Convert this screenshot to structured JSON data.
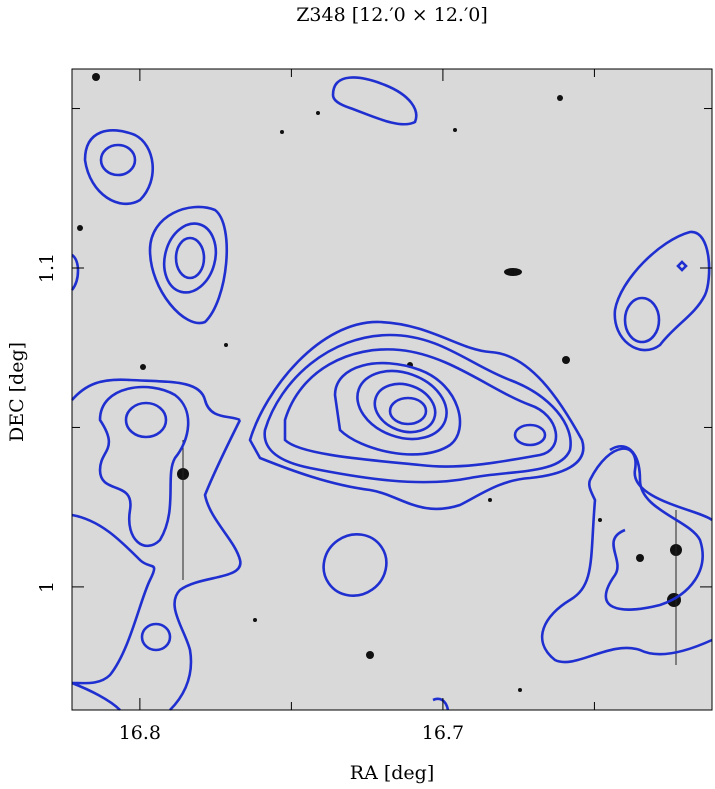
{
  "chart_data": {
    "type": "image",
    "title": "Z348  [12.′0 × 12.′0]",
    "xlabel": "RA [deg]",
    "ylabel": "DEC [deg]",
    "xlim": [
      16.8224,
      16.6112
    ],
    "xticks": [
      16.8,
      16.7
    ],
    "xminorticks": [
      16.75,
      16.65
    ],
    "ylim": [
      0.9614,
      1.1624
    ],
    "yticks": [
      1,
      1.1
    ],
    "yminorticks": [
      1.05,
      1.15
    ],
    "contour_color": "#1f2fd0"
  }
}
